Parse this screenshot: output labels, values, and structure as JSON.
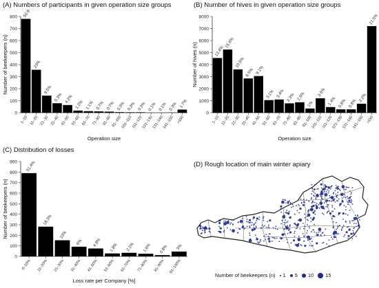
{
  "chart_data": [
    {
      "type": "bar",
      "title": "(A) Numbers of participants in given operation size groups",
      "xlabel": "Operation size",
      "ylabel": "Number of beekeepers (n)",
      "ylim": [
        0,
        800
      ],
      "yticks": [
        0,
        100,
        200,
        300,
        400,
        500,
        600,
        700,
        800
      ],
      "categories": [
        "1–10",
        "11–20",
        "21–30",
        "31–40",
        "41–50",
        "51–60",
        "61–70",
        "71–80",
        "81–90",
        "91–100",
        "101–110",
        "111–120",
        "121–130",
        "131–140",
        "141–150",
        ">150"
      ],
      "values": [
        780,
        357,
        142,
        79,
        64,
        18,
        13,
        11,
        9,
        5,
        4,
        4,
        1,
        1,
        2,
        26
      ],
      "labels": [
        "50.8%",
        "23%",
        "9.5%",
        "5.3%",
        "4.2%",
        "1.2%",
        "1.1%",
        "0.7%",
        "0.7%",
        "0.3%",
        "0.3%",
        "0.3%",
        "0.1%",
        "0.1%",
        "0.3%",
        "1.7%"
      ]
    },
    {
      "type": "bar",
      "title": "(B) Number of hives in given operation size groups",
      "xlabel": "Operation size",
      "ylabel": "Number of hives (n)",
      "ylim": [
        0,
        8000
      ],
      "yticks": [
        0,
        1000,
        2000,
        3000,
        4000,
        5000,
        6000,
        7000,
        8000
      ],
      "categories": [
        "1–10",
        "11–20",
        "21–30",
        "31–40",
        "41–50",
        "51–60",
        "61–70",
        "71–80",
        "81–90",
        "91–100",
        "101–110",
        "111–120",
        "121–130",
        "131–140",
        "141–150",
        ">150"
      ],
      "values": [
        4550,
        5250,
        3600,
        2850,
        3050,
        1050,
        1100,
        780,
        870,
        350,
        1200,
        470,
        280,
        280,
        750,
        7200
      ],
      "labels": [
        "13.4%",
        "15.6%",
        "10.6%",
        "8.5%",
        "9.1%",
        "3.1%",
        "3.4%",
        "2.3%",
        "2.6%",
        "1%",
        "3.5%",
        "1.4%",
        "0.8%",
        "0.8%",
        "2.2%",
        "21.5%"
      ]
    },
    {
      "type": "bar",
      "title": "(C) Distribution of losses",
      "xlabel": "Loss rate per Company [%]",
      "ylabel": "Number of beekeepers (n)",
      "ylim": [
        0,
        900
      ],
      "yticks": [
        0,
        100,
        200,
        300,
        400,
        500,
        600,
        700,
        800,
        900
      ],
      "categories": [
        "0–10%",
        "11–20%",
        "21–30%",
        "31–40%",
        "41–50%",
        "51–60%",
        "61–70%",
        "71–80%",
        "81–90%",
        "91–100%"
      ],
      "values": [
        790,
        282,
        153,
        92,
        75,
        28,
        34,
        25,
        12,
        46
      ],
      "labels": [
        "51.4%",
        "18.3%",
        "10%",
        "6%",
        "4.9%",
        "1.8%",
        "2.2%",
        "1.6%",
        "0.8%",
        "3%"
      ]
    }
  ],
  "map": {
    "title": "(D) Rough location of main winter apiary",
    "legend_title": "Number of beekeepers (n)",
    "legend_values": [
      "1",
      "5",
      "10",
      "15"
    ],
    "dot_color": "#1e2a8c"
  }
}
